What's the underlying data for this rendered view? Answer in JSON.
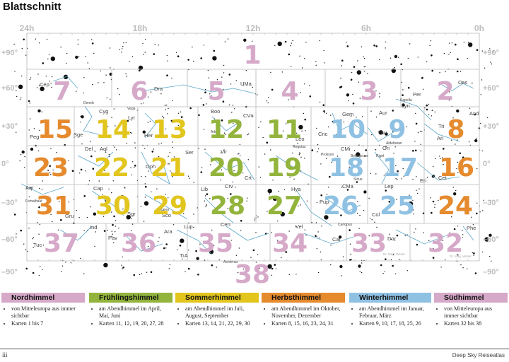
{
  "title": "Blattschnitt",
  "ra_labels": [
    {
      "text": "24h",
      "pos": 0
    },
    {
      "text": "18h",
      "pos": 0.25
    },
    {
      "text": "12h",
      "pos": 0.5
    },
    {
      "text": "6h",
      "pos": 0.75
    },
    {
      "text": "0h",
      "pos": 1
    }
  ],
  "dec_labels": [
    "+90°",
    "+60°",
    "+30°",
    "0°",
    "–30°",
    "–60°",
    "–90°"
  ],
  "tiles": [
    {
      "n": "1",
      "season": "nord"
    },
    {
      "n": "7",
      "season": "nord"
    },
    {
      "n": "6",
      "season": "nord"
    },
    {
      "n": "5",
      "season": "nord"
    },
    {
      "n": "4",
      "season": "nord"
    },
    {
      "n": "3",
      "season": "nord"
    },
    {
      "n": "2",
      "season": "nord"
    },
    {
      "n": "15",
      "season": "herbst"
    },
    {
      "n": "14",
      "season": "sommer"
    },
    {
      "n": "13",
      "season": "sommer"
    },
    {
      "n": "12",
      "season": "fruehling"
    },
    {
      "n": "11",
      "season": "fruehling"
    },
    {
      "n": "10",
      "season": "winter"
    },
    {
      "n": "9",
      "season": "winter"
    },
    {
      "n": "8",
      "season": "herbst"
    },
    {
      "n": "23",
      "season": "herbst"
    },
    {
      "n": "22",
      "season": "sommer"
    },
    {
      "n": "21",
      "season": "sommer"
    },
    {
      "n": "20",
      "season": "fruehling"
    },
    {
      "n": "19",
      "season": "fruehling"
    },
    {
      "n": "18",
      "season": "winter"
    },
    {
      "n": "17",
      "season": "winter"
    },
    {
      "n": "16",
      "season": "herbst"
    },
    {
      "n": "31",
      "season": "herbst"
    },
    {
      "n": "30",
      "season": "sommer"
    },
    {
      "n": "29",
      "season": "sommer"
    },
    {
      "n": "28",
      "season": "fruehling"
    },
    {
      "n": "27",
      "season": "fruehling"
    },
    {
      "n": "26",
      "season": "winter"
    },
    {
      "n": "25",
      "season": "winter"
    },
    {
      "n": "24",
      "season": "herbst"
    },
    {
      "n": "37",
      "season": "sued"
    },
    {
      "n": "36",
      "season": "sued"
    },
    {
      "n": "35",
      "season": "sued"
    },
    {
      "n": "34",
      "season": "sued"
    },
    {
      "n": "33",
      "season": "sued"
    },
    {
      "n": "32",
      "season": "sued"
    },
    {
      "n": "38",
      "season": "sued"
    }
  ],
  "constellations": [
    "Cep",
    "Cyg",
    "Lyr",
    "Dra",
    "UMa",
    "Cas",
    "Per",
    "Aur",
    "Lyn",
    "Gem",
    "Boo",
    "CVn",
    "Her",
    "Peg",
    "Sge",
    "And",
    "Tri",
    "Ari",
    "Tau",
    "Cnc",
    "Leo",
    "Del",
    "Aql",
    "Oph",
    "Ser",
    "Vir",
    "Crt",
    "Hya",
    "CMi",
    "Ori",
    "Eri",
    "Cet",
    "Aqr",
    "Cap",
    "Sgr",
    "Sco",
    "Lib",
    "Crv",
    "Lep",
    "Pup",
    "CMa",
    "Col",
    "Gru",
    "Ind",
    "Pav",
    "Ara",
    "Lup",
    "Cen",
    "Vel",
    "Car",
    "Dor",
    "Tuc",
    "TrA",
    "Phe"
  ],
  "stars": [
    "Deneb",
    "Vega",
    "Arktur",
    "Kapella",
    "Regulus",
    "Prokyon",
    "Betelgeuze",
    "Aldebaran",
    "Rigel",
    "Sirius",
    "Spika",
    "Antares",
    "Fomalhaut",
    "Canopus",
    "Achernar"
  ],
  "credits": [
    "Dr. Mag. Weiler",
    "Dr. Mag. Weiler"
  ],
  "colors": {
    "nord": "#d6a9c9",
    "fruehling": "#93b43c",
    "sommer": "#e2c51d",
    "herbst": "#e58a2d",
    "winter": "#8fc1e3",
    "sued": "#d6a9c9",
    "constellation_line": "#5aa6c8",
    "grid": "#b8b8b8",
    "axis_label": "#bdbdbd"
  },
  "legend": [
    {
      "season": "nord",
      "head": "Nordhimmel",
      "items": [
        "von Mitteleuropa aus immer sichtbar",
        "Karten 1 bis 7"
      ]
    },
    {
      "season": "fruehling",
      "head": "Frühlingshimmel",
      "items": [
        "am Abendhimmel im April, Mai, Juni",
        "Karten 11, 12, 19, 20, 27, 28"
      ]
    },
    {
      "season": "sommer",
      "head": "Sommerhimmel",
      "items": [
        "am Abendhimmel im Juli, August, September",
        "Karten 13, 14, 21, 22, 29, 30"
      ]
    },
    {
      "season": "herbst",
      "head": "Herbsthimmel",
      "items": [
        "am Abendhimmel im Oktober, November, Dezember",
        "Karten 8, 15, 16, 23, 24, 31"
      ]
    },
    {
      "season": "winter",
      "head": "Winterhimmel",
      "items": [
        "am Abendhimmel im Januar, Februar, März",
        "Karten 9, 10, 17, 18, 25, 26"
      ]
    },
    {
      "season": "sued",
      "head": "Südhimmel",
      "items": [
        "von Mitteleuropa aus immer sichtbar",
        "Karten 32 bis 38"
      ]
    }
  ],
  "footer": {
    "page": "iii",
    "book": "Deep Sky Reiseatlas"
  }
}
